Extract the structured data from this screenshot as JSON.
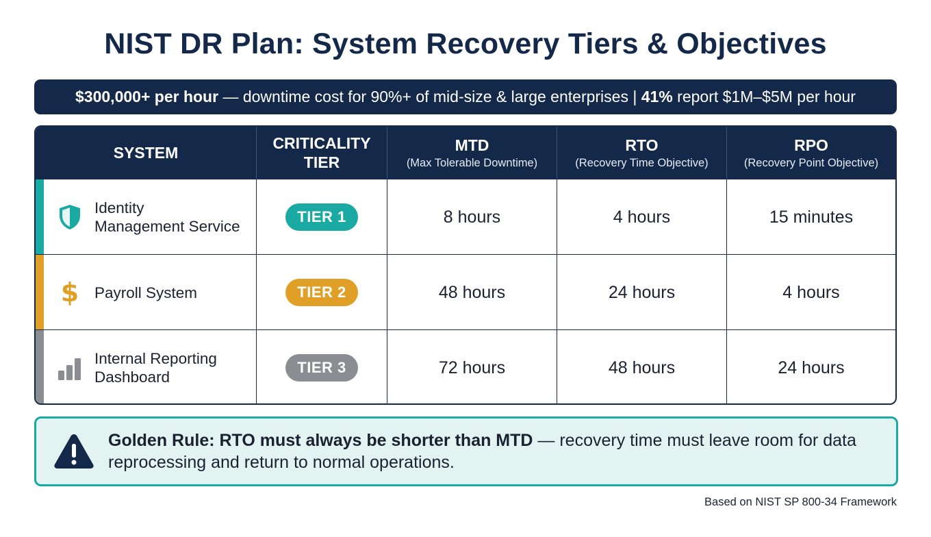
{
  "title": "NIST DR Plan: System Recovery Tiers & Objectives",
  "banner": {
    "part1_bold": "$300,000+ per hour",
    "part1_rest": " — downtime cost for 90%+ of mid-size & large enterprises | ",
    "part2_bold": "41%",
    "part2_rest": " report $1M–$5M per hour"
  },
  "table": {
    "headers": [
      {
        "main": "SYSTEM",
        "sub": ""
      },
      {
        "main": "CRITICALITY TIER",
        "sub": ""
      },
      {
        "main": "MTD",
        "sub": "(Max Tolerable Downtime)"
      },
      {
        "main": "RTO",
        "sub": "(Recovery Time Objective)"
      },
      {
        "main": "RPO",
        "sub": "(Recovery Point Objective)"
      }
    ],
    "rows": [
      {
        "system_line1": "Identity",
        "system_line2": "Management Service",
        "icon": "shield-icon",
        "accent": "#1aa9a3",
        "tier": "TIER 1",
        "tier_color": "#1aa9a3",
        "mtd": "8 hours",
        "rto": "4 hours",
        "rpo": "15 minutes"
      },
      {
        "system_line1": "Payroll System",
        "system_line2": "",
        "icon": "dollar-icon",
        "accent": "#e0a028",
        "tier": "TIER 2",
        "tier_color": "#e0a028",
        "mtd": "48 hours",
        "rto": "24 hours",
        "rpo": "4 hours"
      },
      {
        "system_line1": "Internal Reporting",
        "system_line2": "Dashboard",
        "icon": "bar-chart-icon",
        "accent": "#8a8d92",
        "tier": "TIER 3",
        "tier_color": "#8a8d92",
        "mtd": "72 hours",
        "rto": "48 hours",
        "rpo": "24 hours"
      }
    ]
  },
  "golden_rule": {
    "bold": "Golden Rule: RTO must always be shorter than MTD",
    "rest": " — recovery time must leave room for data reprocessing and return to normal operations."
  },
  "footer": "Based on NIST SP 800-34 Framework"
}
